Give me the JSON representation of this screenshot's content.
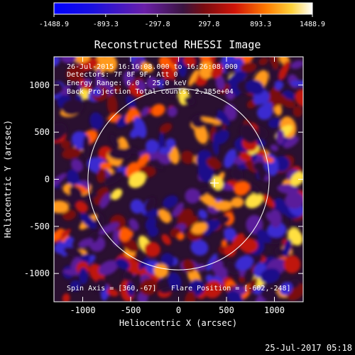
{
  "chart_data": {
    "type": "heatmap",
    "title": "Reconstructed RHESSI Image",
    "xlabel": "Heliocentric X (arcsec)",
    "ylabel": "Heliocentric Y (arcsec)",
    "xlim": [
      -1300,
      1300
    ],
    "ylim": [
      -1300,
      1300
    ],
    "x_ticks": [
      -1000,
      -500,
      0,
      500,
      1000
    ],
    "y_ticks": [
      -1000,
      -500,
      0,
      500,
      1000
    ],
    "x_tick_labels": [
      "-1000",
      "-500",
      "0",
      "500",
      "1000"
    ],
    "y_tick_labels": [
      "-1000",
      "-500",
      "0",
      "500",
      "1000"
    ],
    "colorbar": {
      "min": -1488.9,
      "max": 1488.9,
      "ticks": [
        -1488.9,
        -893.3,
        -297.8,
        297.8,
        893.3,
        1488.9
      ],
      "tick_labels": [
        "-1488.9",
        "-893.3",
        "-297.8",
        "297.8",
        "893.3",
        "1488.9"
      ]
    },
    "solar_disk": {
      "center": [
        0,
        0
      ],
      "radius_arcsec": 945
    },
    "flare_position": [
      -602,
      -248
    ],
    "marker_position": [
      375,
      -40
    ],
    "annotations": {
      "line1": "26-Jul-2015 16:16:08.000 to 16:26:08.000",
      "line2": "Detectors: 7F 8F 9F, Att 0",
      "line3": "Energy Range: 6.0 - 25.0 keV",
      "line4": "Back Projection   Total counts: 2.385e+04",
      "spin_axis": "Spin Axis = [360,-67]",
      "flare_position": "Flare Position = [-602,-248]"
    },
    "footer_timestamp": "25-Jul-2017 05:18"
  }
}
